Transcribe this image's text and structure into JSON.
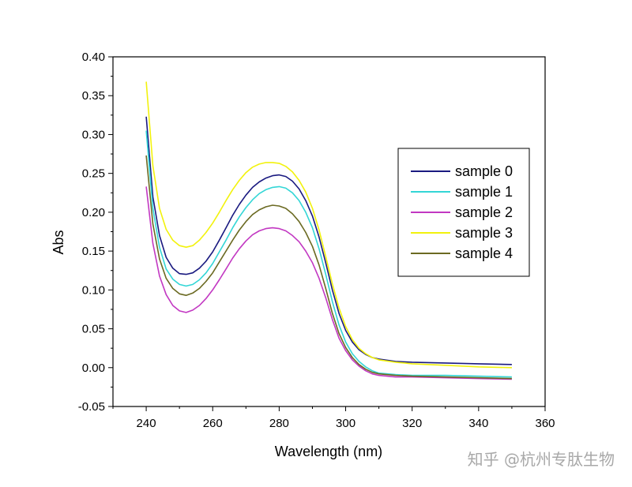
{
  "chart_data": {
    "type": "line",
    "xlabel": "Wavelength (nm)",
    "ylabel": "Abs",
    "xlim": [
      230,
      360
    ],
    "ylim": [
      -0.05,
      0.4
    ],
    "x_ticks": [
      "240",
      "260",
      "280",
      "300",
      "320",
      "340",
      "360"
    ],
    "y_ticks": [
      "-0.05",
      "0.00",
      "0.05",
      "0.10",
      "0.15",
      "0.20",
      "0.25",
      "0.30",
      "0.35",
      "0.40"
    ],
    "grid": false,
    "legend_position": "right",
    "series": [
      {
        "name": "sample 0",
        "color": "#1a1a80",
        "points": [
          [
            240,
            0.323
          ],
          [
            242,
            0.22
          ],
          [
            244,
            0.17
          ],
          [
            246,
            0.142
          ],
          [
            248,
            0.128
          ],
          [
            250,
            0.121
          ],
          [
            252,
            0.12
          ],
          [
            254,
            0.122
          ],
          [
            256,
            0.128
          ],
          [
            258,
            0.137
          ],
          [
            260,
            0.149
          ],
          [
            262,
            0.164
          ],
          [
            264,
            0.18
          ],
          [
            266,
            0.196
          ],
          [
            268,
            0.21
          ],
          [
            270,
            0.222
          ],
          [
            272,
            0.232
          ],
          [
            274,
            0.239
          ],
          [
            276,
            0.244
          ],
          [
            278,
            0.247
          ],
          [
            280,
            0.248
          ],
          [
            282,
            0.246
          ],
          [
            284,
            0.24
          ],
          [
            286,
            0.23
          ],
          [
            288,
            0.215
          ],
          [
            290,
            0.195
          ],
          [
            292,
            0.168
          ],
          [
            294,
            0.135
          ],
          [
            296,
            0.1
          ],
          [
            298,
            0.07
          ],
          [
            300,
            0.048
          ],
          [
            302,
            0.033
          ],
          [
            304,
            0.023
          ],
          [
            306,
            0.017
          ],
          [
            308,
            0.013
          ],
          [
            310,
            0.011
          ],
          [
            315,
            0.008
          ],
          [
            320,
            0.007
          ],
          [
            330,
            0.006
          ],
          [
            340,
            0.005
          ],
          [
            350,
            0.004
          ]
        ]
      },
      {
        "name": "sample 1",
        "color": "#33d6d6",
        "points": [
          [
            240,
            0.305
          ],
          [
            242,
            0.205
          ],
          [
            244,
            0.155
          ],
          [
            246,
            0.127
          ],
          [
            248,
            0.114
          ],
          [
            250,
            0.107
          ],
          [
            252,
            0.105
          ],
          [
            254,
            0.107
          ],
          [
            256,
            0.113
          ],
          [
            258,
            0.122
          ],
          [
            260,
            0.134
          ],
          [
            262,
            0.149
          ],
          [
            264,
            0.164
          ],
          [
            266,
            0.18
          ],
          [
            268,
            0.194
          ],
          [
            270,
            0.206
          ],
          [
            272,
            0.216
          ],
          [
            274,
            0.224
          ],
          [
            276,
            0.229
          ],
          [
            278,
            0.232
          ],
          [
            280,
            0.233
          ],
          [
            282,
            0.231
          ],
          [
            284,
            0.225
          ],
          [
            286,
            0.215
          ],
          [
            288,
            0.2
          ],
          [
            290,
            0.18
          ],
          [
            292,
            0.153
          ],
          [
            294,
            0.12
          ],
          [
            296,
            0.085
          ],
          [
            298,
            0.055
          ],
          [
            300,
            0.033
          ],
          [
            302,
            0.018
          ],
          [
            304,
            0.008
          ],
          [
            306,
            0.001
          ],
          [
            308,
            -0.004
          ],
          [
            310,
            -0.007
          ],
          [
            315,
            -0.009
          ],
          [
            320,
            -0.01
          ],
          [
            330,
            -0.01
          ],
          [
            340,
            -0.011
          ],
          [
            350,
            -0.012
          ]
        ]
      },
      {
        "name": "sample 2",
        "color": "#c238c2",
        "points": [
          [
            240,
            0.233
          ],
          [
            242,
            0.16
          ],
          [
            244,
            0.118
          ],
          [
            246,
            0.094
          ],
          [
            248,
            0.08
          ],
          [
            250,
            0.073
          ],
          [
            252,
            0.071
          ],
          [
            254,
            0.074
          ],
          [
            256,
            0.08
          ],
          [
            258,
            0.089
          ],
          [
            260,
            0.1
          ],
          [
            262,
            0.113
          ],
          [
            264,
            0.127
          ],
          [
            266,
            0.141
          ],
          [
            268,
            0.153
          ],
          [
            270,
            0.163
          ],
          [
            272,
            0.171
          ],
          [
            274,
            0.176
          ],
          [
            276,
            0.179
          ],
          [
            278,
            0.18
          ],
          [
            280,
            0.179
          ],
          [
            282,
            0.176
          ],
          [
            284,
            0.17
          ],
          [
            286,
            0.162
          ],
          [
            288,
            0.15
          ],
          [
            290,
            0.135
          ],
          [
            292,
            0.115
          ],
          [
            294,
            0.09
          ],
          [
            296,
            0.062
          ],
          [
            298,
            0.038
          ],
          [
            300,
            0.022
          ],
          [
            302,
            0.01
          ],
          [
            304,
            0.002
          ],
          [
            306,
            -0.004
          ],
          [
            308,
            -0.008
          ],
          [
            310,
            -0.01
          ],
          [
            315,
            -0.012
          ],
          [
            320,
            -0.012
          ],
          [
            330,
            -0.013
          ],
          [
            340,
            -0.014
          ],
          [
            350,
            -0.015
          ]
        ]
      },
      {
        "name": "sample 3",
        "color": "#f2f20d",
        "points": [
          [
            240,
            0.368
          ],
          [
            242,
            0.26
          ],
          [
            244,
            0.205
          ],
          [
            246,
            0.178
          ],
          [
            248,
            0.164
          ],
          [
            250,
            0.157
          ],
          [
            252,
            0.155
          ],
          [
            254,
            0.157
          ],
          [
            256,
            0.164
          ],
          [
            258,
            0.174
          ],
          [
            260,
            0.186
          ],
          [
            262,
            0.2
          ],
          [
            264,
            0.215
          ],
          [
            266,
            0.229
          ],
          [
            268,
            0.241
          ],
          [
            270,
            0.251
          ],
          [
            272,
            0.258
          ],
          [
            274,
            0.262
          ],
          [
            276,
            0.264
          ],
          [
            278,
            0.264
          ],
          [
            280,
            0.263
          ],
          [
            282,
            0.259
          ],
          [
            284,
            0.252
          ],
          [
            286,
            0.241
          ],
          [
            288,
            0.226
          ],
          [
            290,
            0.205
          ],
          [
            292,
            0.177
          ],
          [
            294,
            0.143
          ],
          [
            296,
            0.108
          ],
          [
            298,
            0.077
          ],
          [
            300,
            0.053
          ],
          [
            302,
            0.036
          ],
          [
            304,
            0.025
          ],
          [
            306,
            0.018
          ],
          [
            308,
            0.013
          ],
          [
            310,
            0.01
          ],
          [
            315,
            0.007
          ],
          [
            320,
            0.005
          ],
          [
            330,
            0.003
          ],
          [
            340,
            0.001
          ],
          [
            350,
            0.0
          ]
        ]
      },
      {
        "name": "sample 4",
        "color": "#6b6a22",
        "points": [
          [
            240,
            0.273
          ],
          [
            242,
            0.185
          ],
          [
            244,
            0.14
          ],
          [
            246,
            0.115
          ],
          [
            248,
            0.102
          ],
          [
            250,
            0.095
          ],
          [
            252,
            0.093
          ],
          [
            254,
            0.096
          ],
          [
            256,
            0.102
          ],
          [
            258,
            0.111
          ],
          [
            260,
            0.122
          ],
          [
            262,
            0.136
          ],
          [
            264,
            0.15
          ],
          [
            266,
            0.164
          ],
          [
            268,
            0.177
          ],
          [
            270,
            0.188
          ],
          [
            272,
            0.197
          ],
          [
            274,
            0.203
          ],
          [
            276,
            0.207
          ],
          [
            278,
            0.209
          ],
          [
            280,
            0.208
          ],
          [
            282,
            0.205
          ],
          [
            284,
            0.198
          ],
          [
            286,
            0.188
          ],
          [
            288,
            0.174
          ],
          [
            290,
            0.156
          ],
          [
            292,
            0.132
          ],
          [
            294,
            0.102
          ],
          [
            296,
            0.07
          ],
          [
            298,
            0.044
          ],
          [
            300,
            0.026
          ],
          [
            302,
            0.013
          ],
          [
            304,
            0.004
          ],
          [
            306,
            -0.002
          ],
          [
            308,
            -0.006
          ],
          [
            310,
            -0.008
          ],
          [
            315,
            -0.01
          ],
          [
            320,
            -0.011
          ],
          [
            330,
            -0.012
          ],
          [
            340,
            -0.013
          ],
          [
            350,
            -0.014
          ]
        ]
      }
    ]
  },
  "watermark": "知乎 @杭州专肽生物"
}
